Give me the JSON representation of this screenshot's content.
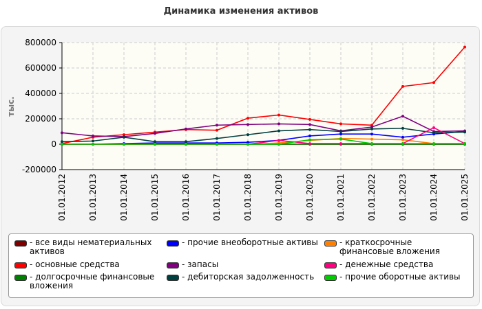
{
  "chart_data": {
    "type": "line",
    "title": "Динамика изменения активов",
    "y_label": "тыс.",
    "categories": [
      "01.01.2012",
      "01.01.2013",
      "01.01.2014",
      "01.01.2015",
      "01.01.2016",
      "01.01.2017",
      "01.01.2018",
      "01.01.2019",
      "01.01.2020",
      "01.01.2021",
      "01.01.2022",
      "01.01.2023",
      "01.01.2024",
      "01.01.2025"
    ],
    "ylim": [
      -200000,
      800000
    ],
    "yticks": [
      -200000,
      0,
      200000,
      400000,
      600000,
      800000
    ],
    "grid": true,
    "series": [
      {
        "name": "все виды нематериальных активов",
        "color": "#800000",
        "values": [
          0,
          0,
          0,
          0,
          0,
          0,
          0,
          0,
          0,
          0,
          0,
          0,
          0,
          0
        ]
      },
      {
        "name": "основные средства",
        "color": "#ff0000",
        "values": [
          5000,
          55000,
          75000,
          95000,
          115000,
          110000,
          205000,
          230000,
          195000,
          160000,
          150000,
          455000,
          485000,
          765000
        ]
      },
      {
        "name": "долгосрочные финансовые вложения",
        "color": "#008000",
        "values": [
          0,
          0,
          0,
          0,
          0,
          0,
          0,
          0,
          0,
          0,
          0,
          0,
          0,
          0
        ]
      },
      {
        "name": "прочие внеоборотные активы",
        "color": "#0000ff",
        "values": [
          0,
          0,
          5000,
          10000,
          10000,
          10000,
          15000,
          30000,
          65000,
          80000,
          80000,
          55000,
          80000,
          100000
        ]
      },
      {
        "name": "запасы",
        "color": "#800080",
        "values": [
          90000,
          65000,
          60000,
          85000,
          120000,
          150000,
          155000,
          160000,
          155000,
          105000,
          135000,
          220000,
          100000,
          105000
        ]
      },
      {
        "name": "дебиторская задолженность",
        "color": "#004040",
        "values": [
          20000,
          25000,
          55000,
          20000,
          20000,
          45000,
          75000,
          105000,
          115000,
          100000,
          120000,
          125000,
          90000,
          95000
        ]
      },
      {
        "name": "краткосрочные финансовые вложения",
        "color": "#ff8000",
        "values": [
          0,
          0,
          0,
          0,
          0,
          0,
          0,
          10000,
          30000,
          45000,
          40000,
          35000,
          5000,
          5000
        ]
      },
      {
        "name": "денежные средства",
        "color": "#ff0080",
        "values": [
          0,
          0,
          0,
          0,
          0,
          0,
          0,
          30000,
          5000,
          5000,
          5000,
          5000,
          130000,
          5000
        ]
      },
      {
        "name": "прочие оборотные активы",
        "color": "#00cc00",
        "values": [
          0,
          0,
          0,
          0,
          0,
          0,
          0,
          0,
          35000,
          40000,
          5000,
          5000,
          5000,
          5000
        ]
      }
    ]
  }
}
